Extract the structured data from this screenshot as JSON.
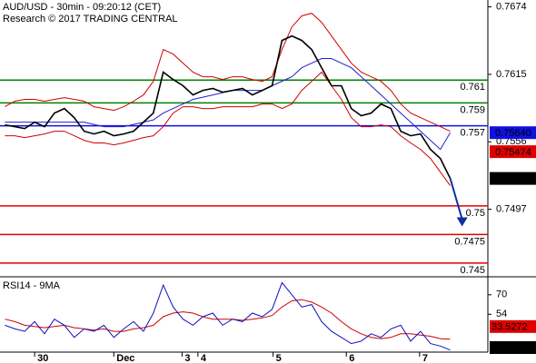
{
  "chart_data": [
    {
      "type": "line",
      "title": "AUD/USD - 30min - 09:20:12 (CET)",
      "subtitle": "Research © 2017 TRADING CENTRAL",
      "x": [
        0,
        1,
        2,
        3,
        4,
        5,
        6,
        7,
        8,
        9,
        10,
        11,
        12,
        13,
        14,
        15,
        16,
        17,
        18,
        19,
        20,
        21,
        22,
        23,
        24,
        25,
        26,
        27,
        28,
        29,
        30,
        31,
        32,
        33,
        34,
        35,
        36,
        37,
        38,
        39,
        40,
        41,
        42,
        43,
        44,
        45
      ],
      "xlim": [
        -0.5,
        48.8
      ],
      "ylim": [
        0.7438,
        0.768
      ],
      "yticks": [
        0.7674,
        0.7615,
        0.7556,
        0.7497
      ],
      "series": [
        {
          "name": "AUD/USD",
          "color": "#000000",
          "values": [
            0.75708,
            0.75692,
            0.75676,
            0.75732,
            0.75692,
            0.75811,
            0.75851,
            0.75772,
            0.75653,
            0.75629,
            0.75653,
            0.75613,
            0.75629,
            0.75653,
            0.75732,
            0.75811,
            0.76169,
            0.76105,
            0.7605,
            0.7597,
            0.7601,
            0.76026,
            0.75994,
            0.7601,
            0.76026,
            0.7597,
            0.7601,
            0.7605,
            0.76446,
            0.76486,
            0.76446,
            0.76367,
            0.76208,
            0.7605,
            0.7605,
            0.75851,
            0.75788,
            0.75811,
            0.75891,
            0.75851,
            0.75653,
            0.75613,
            0.75629,
            0.75494,
            0.75415,
            0.7524
          ]
        },
        {
          "name": "Upper band",
          "color": "#d00000",
          "values": [
            0.75867,
            0.75915,
            0.75931,
            0.75931,
            0.75915,
            0.75931,
            0.75946,
            0.75931,
            0.75915,
            0.75867,
            0.75851,
            0.75835,
            0.75867,
            0.75915,
            0.7597,
            0.76089,
            0.76367,
            0.76327,
            0.76248,
            0.76169,
            0.76129,
            0.76129,
            0.76105,
            0.76129,
            0.76129,
            0.76105,
            0.76089,
            0.76129,
            0.76367,
            0.76565,
            0.76661,
            0.76684,
            0.76605,
            0.76486,
            0.76367,
            0.76248,
            0.76169,
            0.76129,
            0.76089,
            0.7601,
            0.75891,
            0.75811,
            0.75772,
            0.75732,
            0.75692,
            0.75653
          ]
        },
        {
          "name": "Lower band",
          "color": "#d00000",
          "values": [
            0.75613,
            0.75613,
            0.75597,
            0.75613,
            0.75629,
            0.75653,
            0.75653,
            0.75613,
            0.75573,
            0.7555,
            0.7555,
            0.75534,
            0.7555,
            0.75573,
            0.75597,
            0.75613,
            0.75692,
            0.75811,
            0.75867,
            0.75867,
            0.75851,
            0.75851,
            0.75867,
            0.75867,
            0.75867,
            0.75867,
            0.75891,
            0.75891,
            0.75851,
            0.75891,
            0.7601,
            0.76089,
            0.76169,
            0.7605,
            0.75931,
            0.75772,
            0.75692,
            0.75692,
            0.75708,
            0.75692,
            0.75613,
            0.7555,
            0.75494,
            0.75415,
            0.75296,
            0.75177
          ]
        },
        {
          "name": "Moving average",
          "color": "#2020d0",
          "values": [
            0.75732,
            0.75732,
            0.75732,
            0.75732,
            0.75732,
            0.75732,
            0.75732,
            0.75732,
            0.75732,
            0.75712,
            0.75692,
            0.75692,
            0.75692,
            0.75712,
            0.75732,
            0.75752,
            0.75811,
            0.75851,
            0.75891,
            0.75931,
            0.7595,
            0.7597,
            0.7599,
            0.7601,
            0.7601,
            0.7601,
            0.7601,
            0.7605,
            0.7609,
            0.76129,
            0.76208,
            0.76248,
            0.76288,
            0.76288,
            0.76248,
            0.76208,
            0.76129,
            0.7605,
            0.7597,
            0.75891,
            0.75811,
            0.75732,
            0.75653,
            0.75573,
            0.75494,
            0.7564
          ]
        }
      ],
      "levels": [
        {
          "value": 0.761,
          "color": "#008000"
        },
        {
          "value": 0.759,
          "color": "#008000"
        },
        {
          "value": 0.757,
          "color": "#1010e0"
        },
        {
          "value": 0.75,
          "color": "#e00000"
        },
        {
          "value": 0.7475,
          "color": "#e00000"
        },
        {
          "value": 0.745,
          "color": "#e00000"
        }
      ],
      "price_tags": [
        {
          "value": 0.7564,
          "label": "0.75640",
          "color": "#1010e0"
        },
        {
          "value": 0.75474,
          "color": "#e00000"
        },
        {
          "value": 0.7524,
          "color": "#000000"
        }
      ],
      "forecast": {
        "color": "#1030a0",
        "x": [
          45,
          46.2
        ],
        "y": [
          0.7524,
          0.7482
        ]
      }
    },
    {
      "type": "line",
      "title": "RSI14 - 9MA",
      "x": [
        0,
        1,
        2,
        3,
        4,
        5,
        6,
        7,
        8,
        9,
        10,
        11,
        12,
        13,
        14,
        15,
        16,
        17,
        18,
        19,
        20,
        21,
        22,
        23,
        24,
        25,
        26,
        27,
        28,
        29,
        30,
        31,
        32,
        33,
        34,
        35,
        36,
        37,
        38,
        39,
        40,
        41,
        42,
        43,
        44,
        45
      ],
      "xlim": [
        -0.5,
        48.8
      ],
      "xticks": [
        {
          "value": 3,
          "label": "30"
        },
        {
          "value": 11,
          "label": "Dec"
        },
        {
          "value": 17.9,
          "label": "3"
        },
        {
          "value": 19.5,
          "label": "4"
        },
        {
          "value": 27.1,
          "label": "5"
        },
        {
          "value": 34.5,
          "label": "6"
        },
        {
          "value": 41.9,
          "label": "7"
        }
      ],
      "ylim": [
        20,
        84
      ],
      "yticks": [
        70,
        54
      ],
      "series": [
        {
          "name": "RSI14",
          "color": "#1010c0",
          "values": [
            45,
            42,
            40,
            48,
            38,
            50,
            45,
            35,
            42,
            40,
            45,
            35,
            42,
            48,
            40,
            55,
            78,
            60,
            50,
            45,
            52,
            55,
            45,
            50,
            48,
            55,
            52,
            58,
            80,
            70,
            60,
            62,
            48,
            40,
            35,
            30,
            32,
            38,
            35,
            42,
            45,
            32,
            40,
            30,
            28,
            24.6978
          ]
        },
        {
          "name": "9MA",
          "color": "#d00000",
          "values": [
            50,
            48,
            45,
            44,
            43,
            44,
            45,
            43,
            42,
            41,
            42,
            40,
            40,
            42,
            43,
            45,
            52,
            55,
            56,
            55,
            52,
            50,
            50,
            50,
            49,
            50,
            51,
            53,
            60,
            65,
            66,
            64,
            60,
            55,
            48,
            42,
            38,
            35,
            34,
            35,
            38,
            38,
            37,
            36,
            34,
            33.5272
          ]
        }
      ],
      "tags": [
        {
          "series": 1,
          "color": "#e00000"
        },
        {
          "series": 0,
          "color": "#000000"
        }
      ]
    }
  ]
}
